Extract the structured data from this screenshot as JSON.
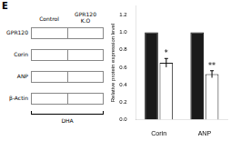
{
  "chart_data": {
    "type": "bar",
    "annotations": [
      "E",
      "Control",
      "GPR120",
      "K.O",
      "GPR120",
      "Corin",
      "ANP",
      "β-Actin",
      "DHA"
    ],
    "ylabel": "Relative protein expression level",
    "categories": [
      "Corin",
      "ANP"
    ],
    "series": [
      {
        "color": "#1a1a1a",
        "values": [
          1.0,
          1.0
        ]
      },
      {
        "color": "#ffffff",
        "values": [
          0.65,
          0.52
        ],
        "errors": [
          0.05,
          0.04
        ],
        "significance": [
          "*",
          "**"
        ]
      }
    ],
    "ylim": [
      0,
      1.3
    ],
    "yticks": [
      {
        "value": 0.0,
        "label": "0.0"
      },
      0.2,
      0.4,
      0.6,
      0.8,
      {
        "value": 1.0,
        "label": "1.0"
      },
      1.2
    ],
    "grid": false,
    "legend": false
  }
}
